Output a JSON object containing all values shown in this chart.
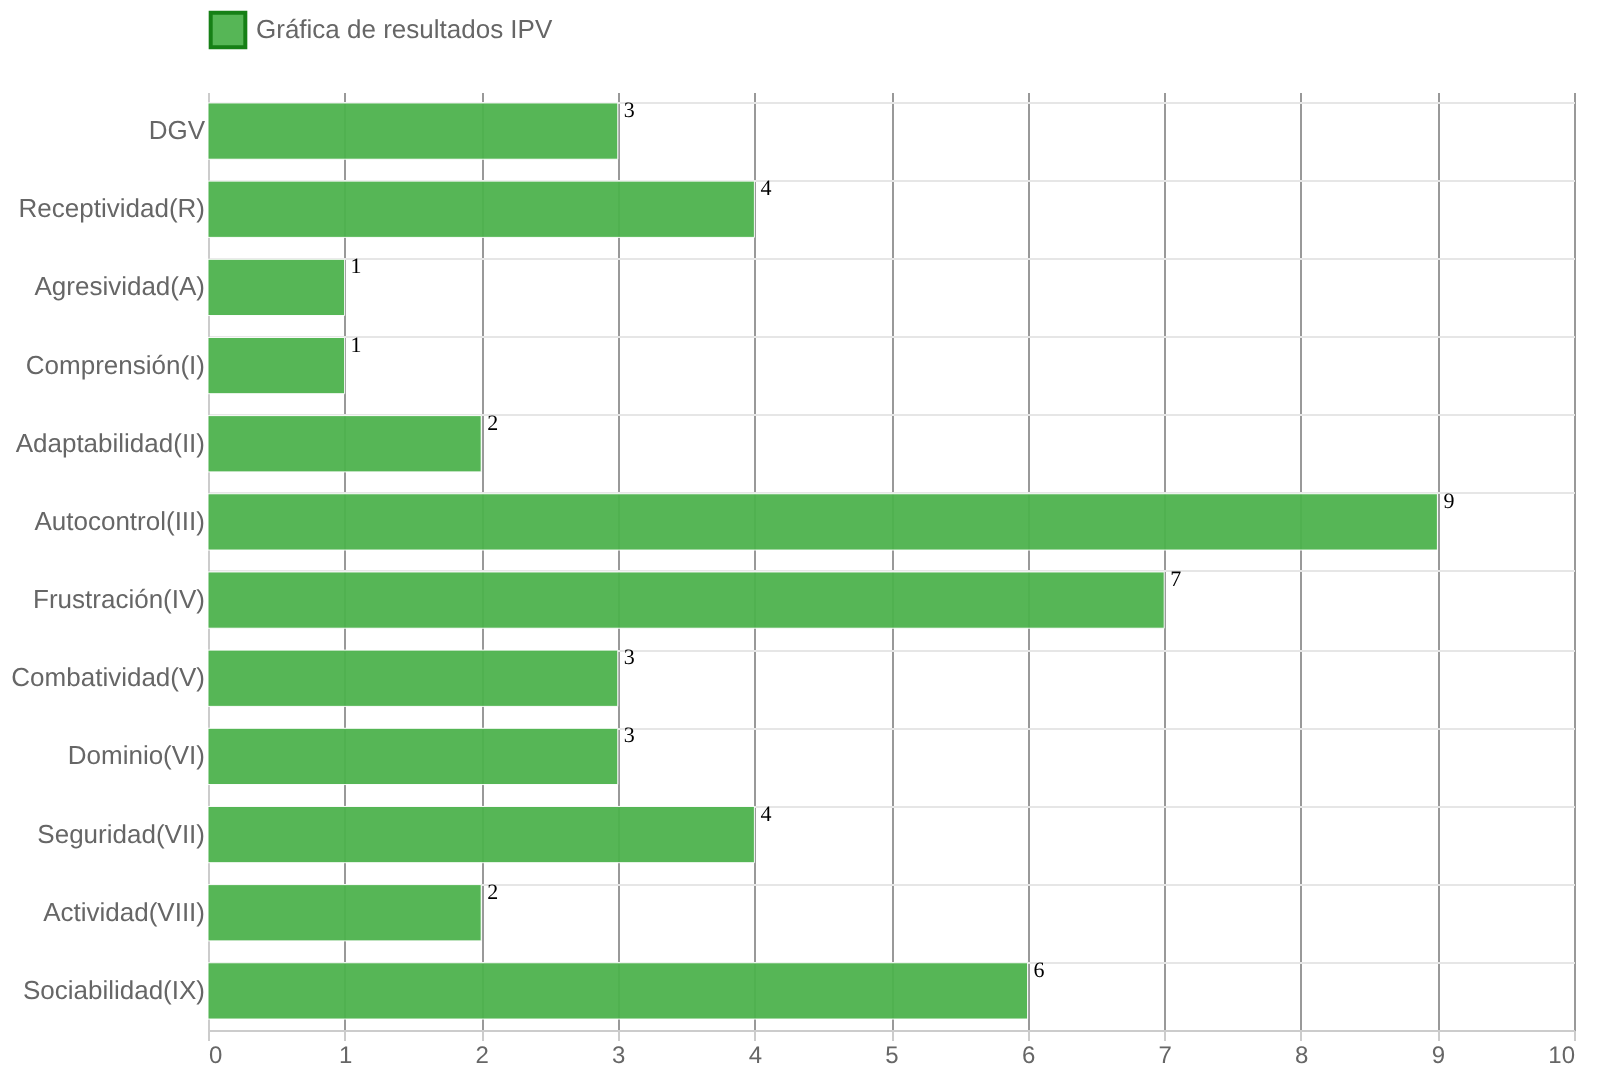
{
  "chart_data": {
    "type": "bar",
    "orientation": "horizontal",
    "categories": [
      "DGV",
      "Receptividad(R)",
      "Agresividad(A)",
      "Comprensión(I)",
      "Adaptabilidad(II)",
      "Autocontrol(III)",
      "Frustración(IV)",
      "Combatividad(V)",
      "Dominio(VI)",
      "Seguridad(VII)",
      "Actividad(VIII)",
      "Sociabilidad(IX)"
    ],
    "series": [
      {
        "name": "Gráfica de resultados IPV",
        "color": "#4db34d",
        "values": [
          3,
          4,
          1,
          1,
          2,
          9,
          7,
          3,
          3,
          4,
          2,
          6
        ]
      }
    ],
    "xlim": [
      0,
      10
    ],
    "xticks": [
      0,
      1,
      2,
      3,
      4,
      5,
      6,
      7,
      8,
      9,
      10
    ],
    "grid": true,
    "legend": "top",
    "data_labels": true
  }
}
